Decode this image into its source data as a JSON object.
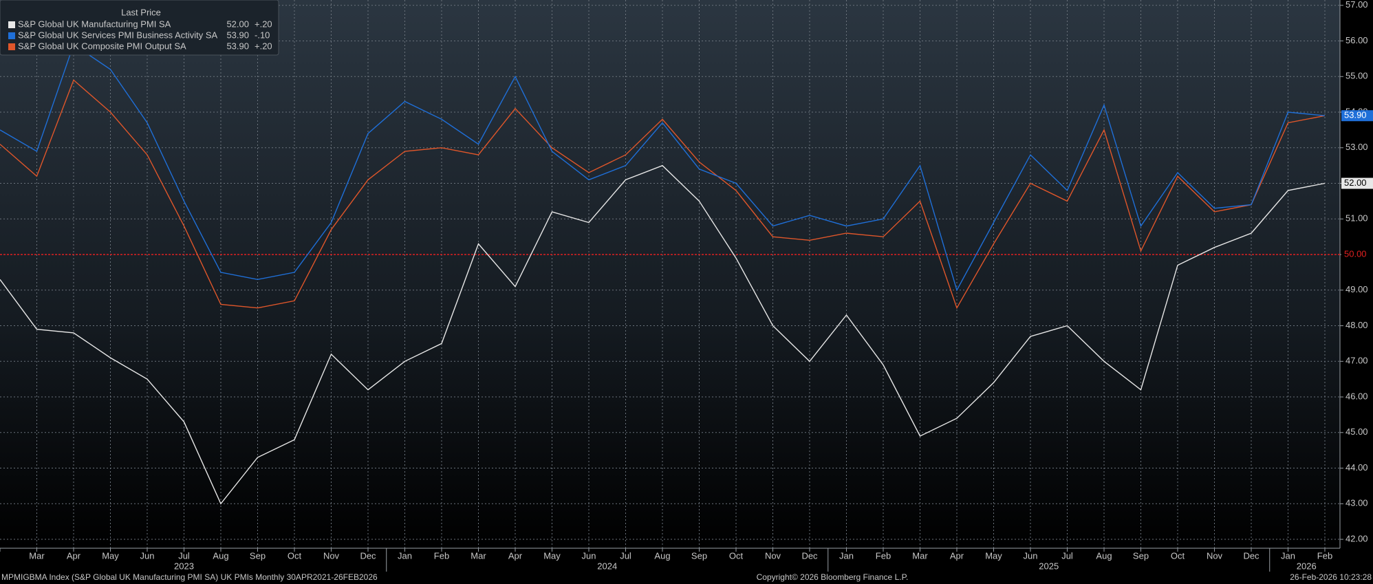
{
  "chart_data": {
    "type": "line",
    "legend_title": "Last Price",
    "categories": [
      null,
      "Mar",
      "Apr",
      "May",
      "Jun",
      "Jul",
      "Aug",
      "Sep",
      "Oct",
      "Nov",
      "Dec",
      "Jan",
      "Feb",
      "Mar",
      "Apr",
      "May",
      "Jun",
      "Jul",
      "Aug",
      "Sep",
      "Oct",
      "Nov",
      "Dec",
      "Jan",
      "Feb",
      "Mar",
      "Apr",
      "May",
      "Jun",
      "Jul",
      "Aug",
      "Sep",
      "Oct",
      "Nov",
      "Dec",
      "Jan",
      "Feb"
    ],
    "year_labels": [
      {
        "label": "2023",
        "from": 0,
        "to": 10
      },
      {
        "label": "2024",
        "from": 11,
        "to": 22
      },
      {
        "label": "2025",
        "from": 23,
        "to": 34
      },
      {
        "label": "2026",
        "from": 35,
        "to": 36
      }
    ],
    "series": [
      {
        "name": "S&P Global UK Manufacturing PMI SA",
        "color": "#e8e8e8",
        "last_price": {
          "value": 52.0,
          "label": "52.00"
        },
        "change": {
          "value": 0.2,
          "label": "+.20"
        },
        "badge": true,
        "badge_text_color": "#000000",
        "values": [
          49.3,
          47.9,
          47.8,
          47.1,
          46.5,
          45.3,
          43.0,
          44.3,
          44.8,
          47.2,
          46.2,
          47.0,
          47.5,
          50.3,
          49.1,
          51.2,
          50.9,
          52.1,
          52.5,
          51.5,
          49.9,
          48.0,
          47.0,
          48.3,
          46.9,
          44.9,
          45.4,
          46.4,
          47.7,
          48.0,
          47.0,
          46.2,
          49.7,
          50.2,
          50.6,
          51.8,
          52.0
        ]
      },
      {
        "name": "S&P Global UK Services PMI Business Activity SA",
        "color": "#1f6fd8",
        "last_price": {
          "value": 53.9,
          "label": "53.90"
        },
        "change": {
          "value": -0.1,
          "label": "-.10"
        },
        "badge": true,
        "badge_text_color": "#ffffff",
        "values": [
          53.5,
          52.9,
          55.9,
          55.2,
          53.7,
          51.5,
          49.5,
          49.3,
          49.5,
          50.9,
          53.4,
          54.3,
          53.8,
          53.1,
          55.0,
          52.9,
          52.1,
          52.5,
          53.7,
          52.4,
          52.0,
          50.8,
          51.1,
          50.8,
          51.0,
          52.5,
          49.0,
          50.9,
          52.8,
          51.8,
          54.2,
          50.8,
          52.3,
          51.3,
          51.4,
          54.0,
          53.9
        ]
      },
      {
        "name": "S&P Global UK Composite PMI Output SA",
        "color": "#e0562a",
        "last_price": {
          "value": 53.9,
          "label": "53.90"
        },
        "change": {
          "value": 0.2,
          "label": "+.20"
        },
        "badge": false,
        "values": [
          53.1,
          52.2,
          54.9,
          54.0,
          52.8,
          50.8,
          48.6,
          48.5,
          48.7,
          50.7,
          52.1,
          52.9,
          53.0,
          52.8,
          54.1,
          53.0,
          52.3,
          52.8,
          53.8,
          52.6,
          51.8,
          50.5,
          50.4,
          50.6,
          50.5,
          51.5,
          48.5,
          50.3,
          52.0,
          51.5,
          53.5,
          50.1,
          52.2,
          51.2,
          51.4,
          53.7,
          53.9
        ]
      }
    ],
    "reference_line": {
      "value": 50,
      "label": "50.00",
      "color": "#e02020"
    },
    "ylim": [
      41.75,
      57.15
    ],
    "yticks": [
      {
        "value": 42,
        "label": "42.00"
      },
      {
        "value": 43,
        "label": "43.00"
      },
      {
        "value": 44,
        "label": "44.00"
      },
      {
        "value": 45,
        "label": "45.00"
      },
      {
        "value": 46,
        "label": "46.00"
      },
      {
        "value": 47,
        "label": "47.00"
      },
      {
        "value": 48,
        "label": "48.00"
      },
      {
        "value": 49,
        "label": "49.00"
      },
      {
        "value": 50,
        "label": "50.00"
      },
      {
        "value": 51,
        "label": "51.00"
      },
      {
        "value": 52,
        "label": "52.00"
      },
      {
        "value": 53,
        "label": "53.00"
      },
      {
        "value": 54,
        "label": "54.00"
      },
      {
        "value": 55,
        "label": "55.00"
      },
      {
        "value": 56,
        "label": "56.00"
      },
      {
        "value": 57,
        "label": "57.00"
      }
    ],
    "grid": true,
    "legend_position": "top-left",
    "footer_left": "MPMIGBMA Index (S&P Global UK Manufacturing PMI SA) UK PMIs Monthly 30APR2021-26FEB2026",
    "footer_center": "Copyright© 2026 Bloomberg Finance L.P.",
    "footer_right": "26-Feb-2026 10:23:28"
  }
}
